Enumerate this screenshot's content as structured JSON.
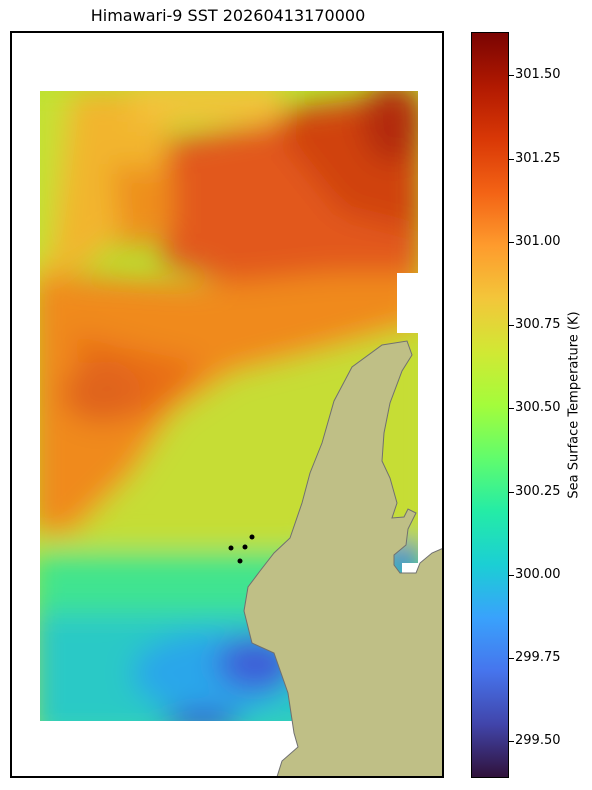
{
  "title": "Himawari-9 SST 20260413170000",
  "colorbar": {
    "label": "Sea Surface Temperature (K)",
    "min": 299.39,
    "max": 301.63,
    "ticks": [
      "299.50",
      "299.75",
      "300.00",
      "300.25",
      "300.50",
      "300.75",
      "301.00",
      "301.25",
      "301.50"
    ],
    "colormap": "turbo"
  },
  "colors": {
    "land": "#bfbf86",
    "coastline": "#707070",
    "station": "#000000"
  }
}
